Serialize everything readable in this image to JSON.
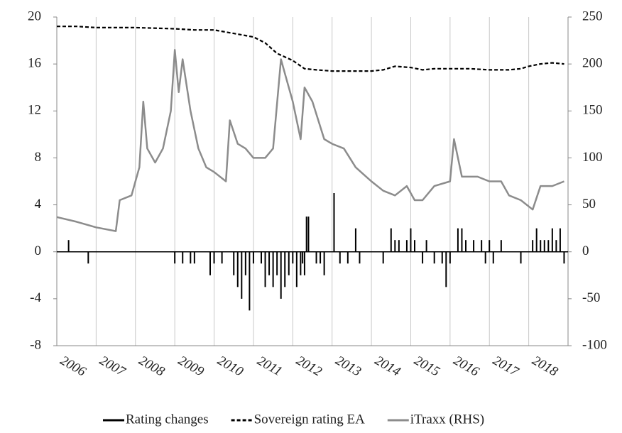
{
  "chart_data": {
    "type": "line",
    "xlim": [
      2006,
      2019
    ],
    "xticks": [
      2006,
      2007,
      2008,
      2009,
      2010,
      2011,
      2012,
      2013,
      2014,
      2015,
      2016,
      2017,
      2018
    ],
    "ylim": [
      -8,
      20
    ],
    "yticks": [
      -8,
      -4,
      0,
      4,
      8,
      12,
      16,
      20
    ],
    "y2lim": [
      -100,
      250
    ],
    "y2ticks": [
      -100,
      -50,
      0,
      50,
      100,
      150,
      200,
      250
    ],
    "grid": true,
    "legend": "bottom",
    "series": [
      {
        "name": "Rating changes",
        "color": "#000000",
        "style": "bar",
        "x": [
          2006.3,
          2006.8,
          2009.0,
          2009.2,
          2009.4,
          2009.5,
          2009.9,
          2010.0,
          2010.2,
          2010.5,
          2010.6,
          2010.7,
          2010.8,
          2011.0,
          2010.9,
          2011.2,
          2011.3,
          2011.4,
          2011.5,
          2011.6,
          2011.7,
          2011.8,
          2011.9,
          2012.0,
          2012.1,
          2012.2,
          2012.25,
          2012.3,
          2012.35,
          2012.4,
          2012.6,
          2012.7,
          2012.8,
          2013.05,
          2013.2,
          2013.4,
          2013.6,
          2013.7,
          2014.3,
          2014.5,
          2014.6,
          2014.7,
          2014.9,
          2015.0,
          2015.1,
          2015.3,
          2015.4,
          2015.6,
          2015.8,
          2015.9,
          2016.0,
          2016.2,
          2016.3,
          2016.4,
          2016.6,
          2016.8,
          2016.9,
          2017.0,
          2017.1,
          2017.3,
          2017.8,
          2018.1,
          2018.2,
          2018.3,
          2018.4,
          2018.5,
          2018.6,
          2018.7,
          2018.8,
          2018.9
        ],
        "values": [
          1,
          -1,
          -1,
          -1,
          -1,
          -1,
          -2,
          -1,
          -1,
          -2,
          -3,
          -4,
          -2,
          -1,
          -5,
          -1,
          -3,
          -2,
          -3,
          -2,
          -4,
          -3,
          -2,
          -1,
          -3,
          -2,
          -1,
          -2,
          3,
          3,
          -1,
          -1,
          -2,
          5,
          -1,
          -1,
          2,
          -1,
          -1,
          2,
          1,
          1,
          1,
          2,
          1,
          -1,
          1,
          -1,
          -1,
          -3,
          -1,
          2,
          2,
          1,
          1,
          1,
          -1,
          1,
          -1,
          1,
          -1,
          1,
          2,
          1,
          1,
          1,
          2,
          1,
          2,
          -1
        ]
      },
      {
        "name": "Sovereign rating EA",
        "color": "#000000",
        "style": "dashed",
        "x": [
          2006,
          2006.5,
          2007,
          2008,
          2009,
          2009.5,
          2010,
          2010.5,
          2011,
          2011.3,
          2011.6,
          2012,
          2012.3,
          2012.6,
          2013,
          2013.5,
          2014,
          2014.3,
          2014.6,
          2015,
          2015.3,
          2015.6,
          2016,
          2016.5,
          2017,
          2017.5,
          2017.8,
          2018,
          2018.3,
          2018.6,
          2018.9
        ],
        "values": [
          19.2,
          19.2,
          19.1,
          19.1,
          19.0,
          18.9,
          18.9,
          18.6,
          18.3,
          17.8,
          16.9,
          16.3,
          15.6,
          15.5,
          15.4,
          15.4,
          15.4,
          15.5,
          15.8,
          15.7,
          15.5,
          15.6,
          15.6,
          15.6,
          15.5,
          15.5,
          15.6,
          15.8,
          16.0,
          16.1,
          16.0
        ]
      },
      {
        "name": "iTraxx (RHS)",
        "color": "#8c8c8c",
        "style": "solid",
        "axis": "y2",
        "x": [
          2006,
          2006.5,
          2007,
          2007.5,
          2007.6,
          2007.9,
          2008.1,
          2008.2,
          2008.3,
          2008.5,
          2008.7,
          2008.9,
          2009.0,
          2009.1,
          2009.2,
          2009.4,
          2009.6,
          2009.8,
          2010.0,
          2010.3,
          2010.4,
          2010.6,
          2010.8,
          2011.0,
          2011.3,
          2011.5,
          2011.7,
          2011.8,
          2012.0,
          2012.2,
          2012.3,
          2012.5,
          2012.8,
          2013.0,
          2013.3,
          2013.6,
          2014.0,
          2014.3,
          2014.6,
          2014.9,
          2015.1,
          2015.3,
          2015.6,
          2016.0,
          2016.1,
          2016.3,
          2016.7,
          2017.0,
          2017.3,
          2017.5,
          2017.8,
          2018.1,
          2018.3,
          2018.6,
          2018.9
        ],
        "values": [
          37,
          32,
          26,
          22,
          55,
          60,
          90,
          160,
          110,
          95,
          110,
          150,
          215,
          170,
          205,
          150,
          110,
          90,
          85,
          75,
          140,
          115,
          110,
          100,
          100,
          110,
          205,
          190,
          160,
          120,
          175,
          160,
          120,
          115,
          110,
          90,
          75,
          65,
          60,
          70,
          55,
          55,
          70,
          75,
          120,
          80,
          80,
          75,
          75,
          60,
          55,
          45,
          70,
          70,
          75
        ]
      }
    ]
  }
}
